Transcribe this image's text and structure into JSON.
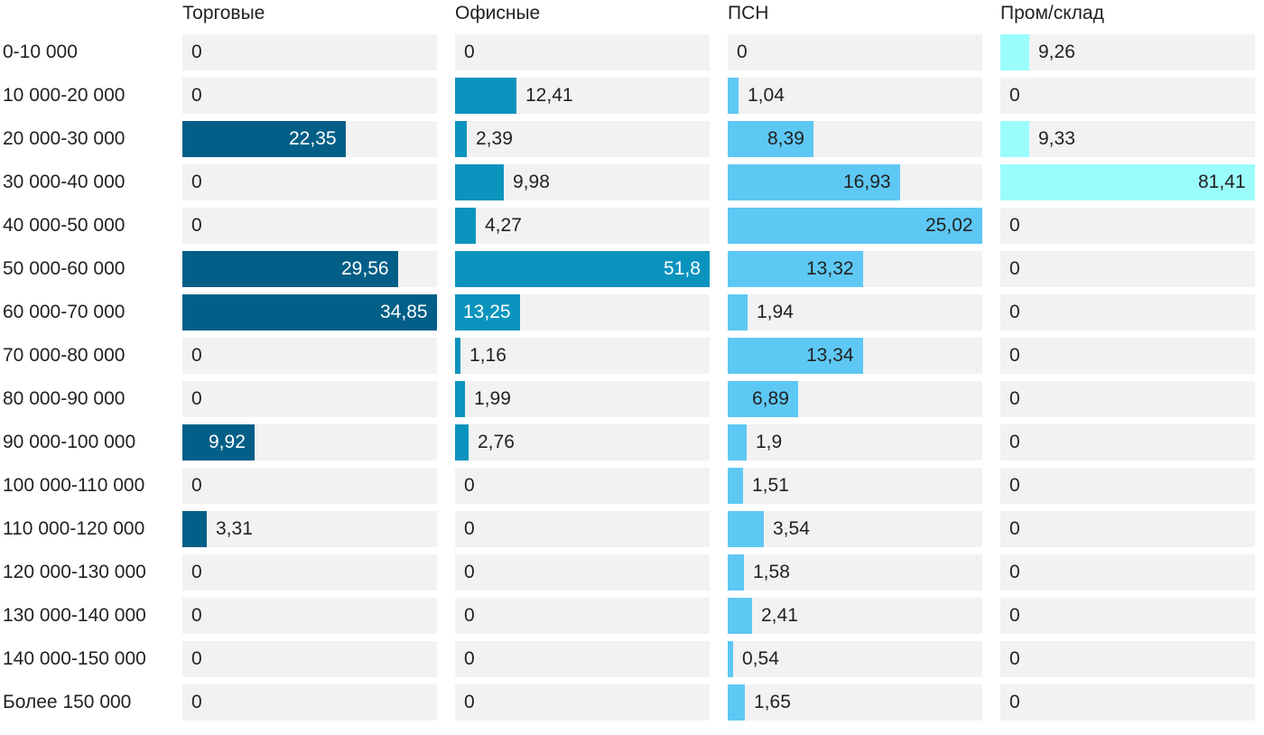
{
  "chart_data": {
    "type": "bar",
    "orientation": "horizontal",
    "layout": "small-multiples",
    "categories": [
      "0-10 000",
      "10 000-20 000",
      "20 000-30 000",
      "30 000-40 000",
      "40 000-50 000",
      "50 000-60 000",
      "60 000-70 000",
      "70 000-80 000",
      "80 000-90 000",
      "90 000-100 000",
      "100 000-110 000",
      "110 000-120 000",
      "120 000-130 000",
      "130 000-140 000",
      "140 000-150 000",
      "Более 150 000"
    ],
    "series": [
      {
        "name": "Торговые",
        "color": "#035f87",
        "values": [
          0,
          0,
          22.35,
          0,
          0,
          29.56,
          34.85,
          0,
          0,
          9.92,
          0,
          3.31,
          0,
          0,
          0,
          0
        ],
        "labels": [
          "0",
          "0",
          "22,35",
          "0",
          "0",
          "29,56",
          "34,85",
          "0",
          "0",
          "9,92",
          "0",
          "3,31",
          "0",
          "0",
          "0",
          "0"
        ]
      },
      {
        "name": "Офисные",
        "color": "#0a93bd",
        "values": [
          0,
          12.41,
          2.39,
          9.98,
          4.27,
          51.8,
          13.25,
          1.16,
          1.99,
          2.76,
          0,
          0,
          0,
          0,
          0,
          0
        ],
        "labels": [
          "0",
          "12,41",
          "2,39",
          "9,98",
          "4,27",
          "51,8",
          "13,25",
          "1,16",
          "1,99",
          "2,76",
          "0",
          "0",
          "0",
          "0",
          "0",
          "0"
        ]
      },
      {
        "name": "ПСН",
        "color": "#5ec8f4",
        "values": [
          0,
          1.04,
          8.39,
          16.93,
          25.02,
          13.32,
          1.94,
          13.34,
          6.89,
          1.9,
          1.51,
          3.54,
          1.58,
          2.41,
          0.54,
          1.65
        ],
        "labels": [
          "0",
          "1,04",
          "8,39",
          "16,93",
          "25,02",
          "13,32",
          "1,94",
          "13,34",
          "6,89",
          "1,9",
          "1,51",
          "3,54",
          "1,58",
          "2,41",
          "0,54",
          "1,65"
        ]
      },
      {
        "name": "Пром/склад",
        "color": "#9bfcfc",
        "values": [
          9.26,
          0,
          9.33,
          81.41,
          0,
          0,
          0,
          0,
          0,
          0,
          0,
          0,
          0,
          0,
          0,
          0
        ],
        "labels": [
          "9,26",
          "0",
          "9,33",
          "81,41",
          "0",
          "0",
          "0",
          "0",
          "0",
          "0",
          "0",
          "0",
          "0",
          "0",
          "0",
          "0"
        ]
      }
    ],
    "title": "",
    "xlabel": "",
    "ylabel": "",
    "grid": false,
    "legend": "none"
  }
}
